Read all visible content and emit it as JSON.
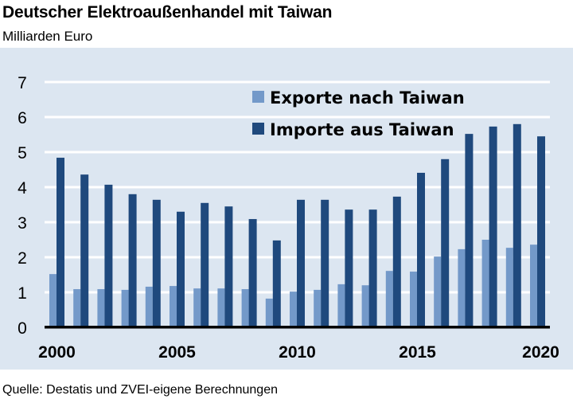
{
  "header": {
    "title": "Deutscher Elektroaußenhandel mit Taiwan",
    "subtitle": "Milliarden Euro"
  },
  "footer": {
    "source": "Quelle: Destatis und ZVEI-eigene Berechnungen"
  },
  "colors": {
    "background": "#DCE6F1",
    "exports": "#7399C9",
    "imports": "#1F497D",
    "gridline": "#FFFFFF",
    "axis": "#000000"
  },
  "legend": {
    "exports_label": "Exporte nach Taiwan",
    "imports_label": "Importe aus Taiwan"
  },
  "y_ticks": [
    "0",
    "1",
    "2",
    "3",
    "4",
    "5",
    "6",
    "7"
  ],
  "x_tick_labels": [
    "2000",
    "2005",
    "2010",
    "2015",
    "2020"
  ],
  "chart_data": {
    "type": "bar",
    "title": "Deutscher Elektroaußenhandel mit Taiwan",
    "subtitle": "Milliarden Euro",
    "xlabel": "",
    "ylabel": "Milliarden Euro",
    "ylim": [
      0,
      7
    ],
    "yticks": [
      0,
      1,
      2,
      3,
      4,
      5,
      6,
      7
    ],
    "xticks_labeled": [
      2000,
      2005,
      2010,
      2015,
      2020
    ],
    "grid": "horizontal",
    "legend_position": "top-right inside",
    "categories": [
      "2000",
      "2001",
      "2002",
      "2003",
      "2004",
      "2005",
      "2006",
      "2007",
      "2008",
      "2009",
      "2010",
      "2011",
      "2012",
      "2013",
      "2014",
      "2015",
      "2016",
      "2017",
      "2018",
      "2019",
      "2020"
    ],
    "series": [
      {
        "name": "Exporte nach Taiwan",
        "color": "#7399C9",
        "values": [
          1.52,
          1.09,
          1.09,
          1.07,
          1.16,
          1.18,
          1.11,
          1.11,
          1.09,
          0.82,
          1.02,
          1.07,
          1.23,
          1.2,
          1.61,
          1.59,
          2.02,
          2.23,
          2.5,
          2.27,
          2.36
        ]
      },
      {
        "name": "Importe aus Taiwan",
        "color": "#1F497D",
        "values": [
          4.84,
          4.36,
          4.07,
          3.8,
          3.64,
          3.3,
          3.55,
          3.45,
          3.09,
          2.48,
          3.64,
          3.64,
          3.36,
          3.36,
          3.73,
          4.41,
          4.8,
          5.52,
          5.73,
          5.8,
          5.45
        ]
      }
    ],
    "source": "Quelle: Destatis und ZVEI-eigene Berechnungen"
  }
}
